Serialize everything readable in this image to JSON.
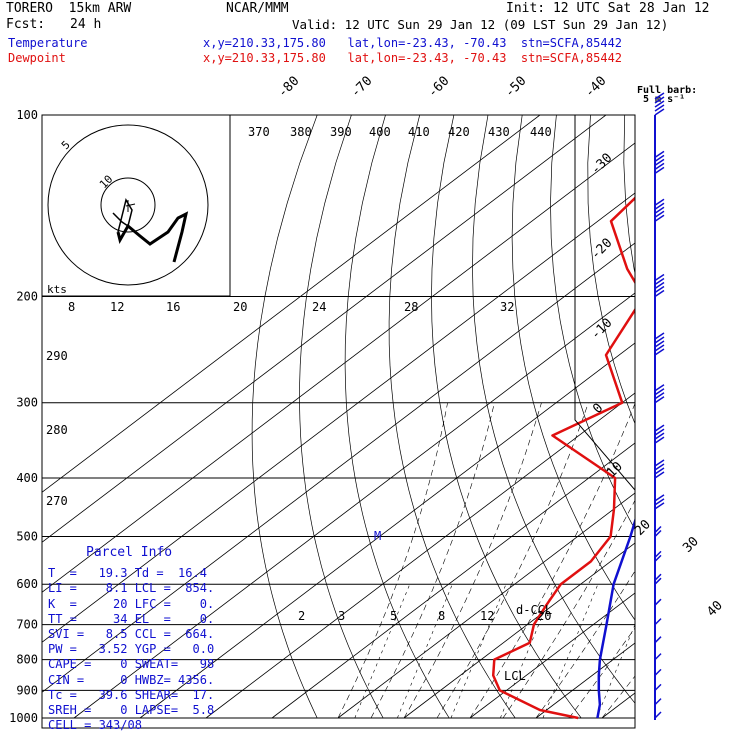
{
  "header": {
    "model": "TORERO  15km ARW",
    "org": "NCAR/MMM",
    "init": "Init: 12 UTC Sat 28 Jan 12",
    "fcst_label": "Fcst:",
    "fcst_hours": "24 h",
    "valid": "Valid: 12 UTC Sun 29 Jan 12 (09 LST Sun 29 Jan 12)",
    "temp_label": "Temperature",
    "dew_label": "Dewpoint",
    "temp_loc": "x,y=210.33,175.80   lat,lon=-23.43, -70.43  stn=SCFA,85442",
    "dew_loc": "x,y=210.33,175.80   lat,lon=-23.43, -70.43  stn=SCFA,85442",
    "barb_title": "Full barb:",
    "barb_unit": "5 m s⁻¹"
  },
  "colors": {
    "temperature": "#1010d0",
    "dewpoint": "#e01010",
    "grid": "#000000"
  },
  "chart_data": {
    "type": "line",
    "subtype": "skew-T log-P sounding",
    "pressure_levels_hPa": [
      100,
      200,
      300,
      400,
      500,
      600,
      700,
      800,
      900,
      1000
    ],
    "pressure_tick_labels": [
      "100",
      "200",
      "300",
      "400",
      "500",
      "600",
      "700",
      "800",
      "900",
      "1000"
    ],
    "isotherm_labels": [
      "-80",
      "-70",
      "-60",
      "-50",
      "-40",
      "-30",
      "-20",
      "-10",
      "0",
      "10",
      "20",
      "30",
      "40"
    ],
    "theta_labels": [
      "370",
      "380",
      "390",
      "400",
      "410",
      "420",
      "430",
      "440",
      "290",
      "280",
      "270"
    ],
    "mixing_ratio_labels": [
      "2",
      "3",
      "5",
      "8",
      "12",
      "20"
    ],
    "hodograph": {
      "unit_label": "kts",
      "ring_labels": [
        "5",
        "10"
      ],
      "speed_scale": [
        "8",
        "12",
        "16",
        "20",
        "24",
        "28",
        "32"
      ]
    },
    "annotations": [
      "M",
      "d-CCL",
      "LCL"
    ],
    "series": [
      {
        "name": "Temperature",
        "points": [
          [
            1000,
            19.3
          ],
          [
            950,
            17
          ],
          [
            900,
            14
          ],
          [
            850,
            11
          ],
          [
            800,
            8
          ],
          [
            700,
            2
          ],
          [
            600,
            -5
          ],
          [
            500,
            -12
          ],
          [
            400,
            -21
          ],
          [
            350,
            -28
          ],
          [
            300,
            -37
          ],
          [
            250,
            -47
          ],
          [
            200,
            -55
          ],
          [
            175,
            -61
          ],
          [
            150,
            -67
          ],
          [
            125,
            -73
          ],
          [
            100,
            -76
          ]
        ]
      },
      {
        "name": "Dewpoint",
        "points": [
          [
            1000,
            16.4
          ],
          [
            970,
            9
          ],
          [
            900,
            -1
          ],
          [
            850,
            -5
          ],
          [
            800,
            -8
          ],
          [
            750,
            -6
          ],
          [
            700,
            -9
          ],
          [
            650,
            -11
          ],
          [
            600,
            -13
          ],
          [
            550,
            -13
          ],
          [
            500,
            -15
          ],
          [
            450,
            -20
          ],
          [
            400,
            -26
          ],
          [
            340,
            -44
          ],
          [
            300,
            -40
          ],
          [
            250,
            -52
          ],
          [
            200,
            -58
          ],
          [
            180,
            -66
          ],
          [
            150,
            -78
          ],
          [
            125,
            -80
          ],
          [
            100,
            -76
          ]
        ]
      }
    ],
    "wind_barbs_kts": [
      [
        1000,
        3,
        90
      ],
      [
        950,
        4,
        100
      ],
      [
        900,
        3,
        120
      ],
      [
        850,
        4,
        140
      ],
      [
        800,
        5,
        150
      ],
      [
        750,
        6,
        170
      ],
      [
        700,
        6,
        180
      ],
      [
        650,
        7,
        200
      ],
      [
        600,
        8,
        220
      ],
      [
        550,
        10,
        240
      ],
      [
        500,
        12,
        250
      ],
      [
        450,
        15,
        260
      ],
      [
        400,
        18,
        260
      ],
      [
        350,
        20,
        270
      ],
      [
        300,
        22,
        270
      ],
      [
        250,
        25,
        270
      ],
      [
        200,
        28,
        270
      ],
      [
        150,
        32,
        270
      ],
      [
        125,
        35,
        270
      ],
      [
        100,
        35,
        280
      ]
    ]
  },
  "parcel_info": {
    "title": "Parcel Info",
    "rows": [
      "T  =   19.3 Td =  16.4",
      "LI =    8.1 LCL =  854.",
      "K  =     20 LFC =    0.",
      "TT =     34 EL  =    0.",
      "SVI =   8.5 CCL =  664.",
      "PW =   3.52 YGP =   0.0",
      "CAPE =    0 SWEAT=   98",
      "CIN =     0 HWBZ= 4356.",
      "Tc =   39.6 SHEAR=  17.",
      "SREH =    0 LAPSE=  5.8",
      "CELL = 343/08"
    ]
  }
}
